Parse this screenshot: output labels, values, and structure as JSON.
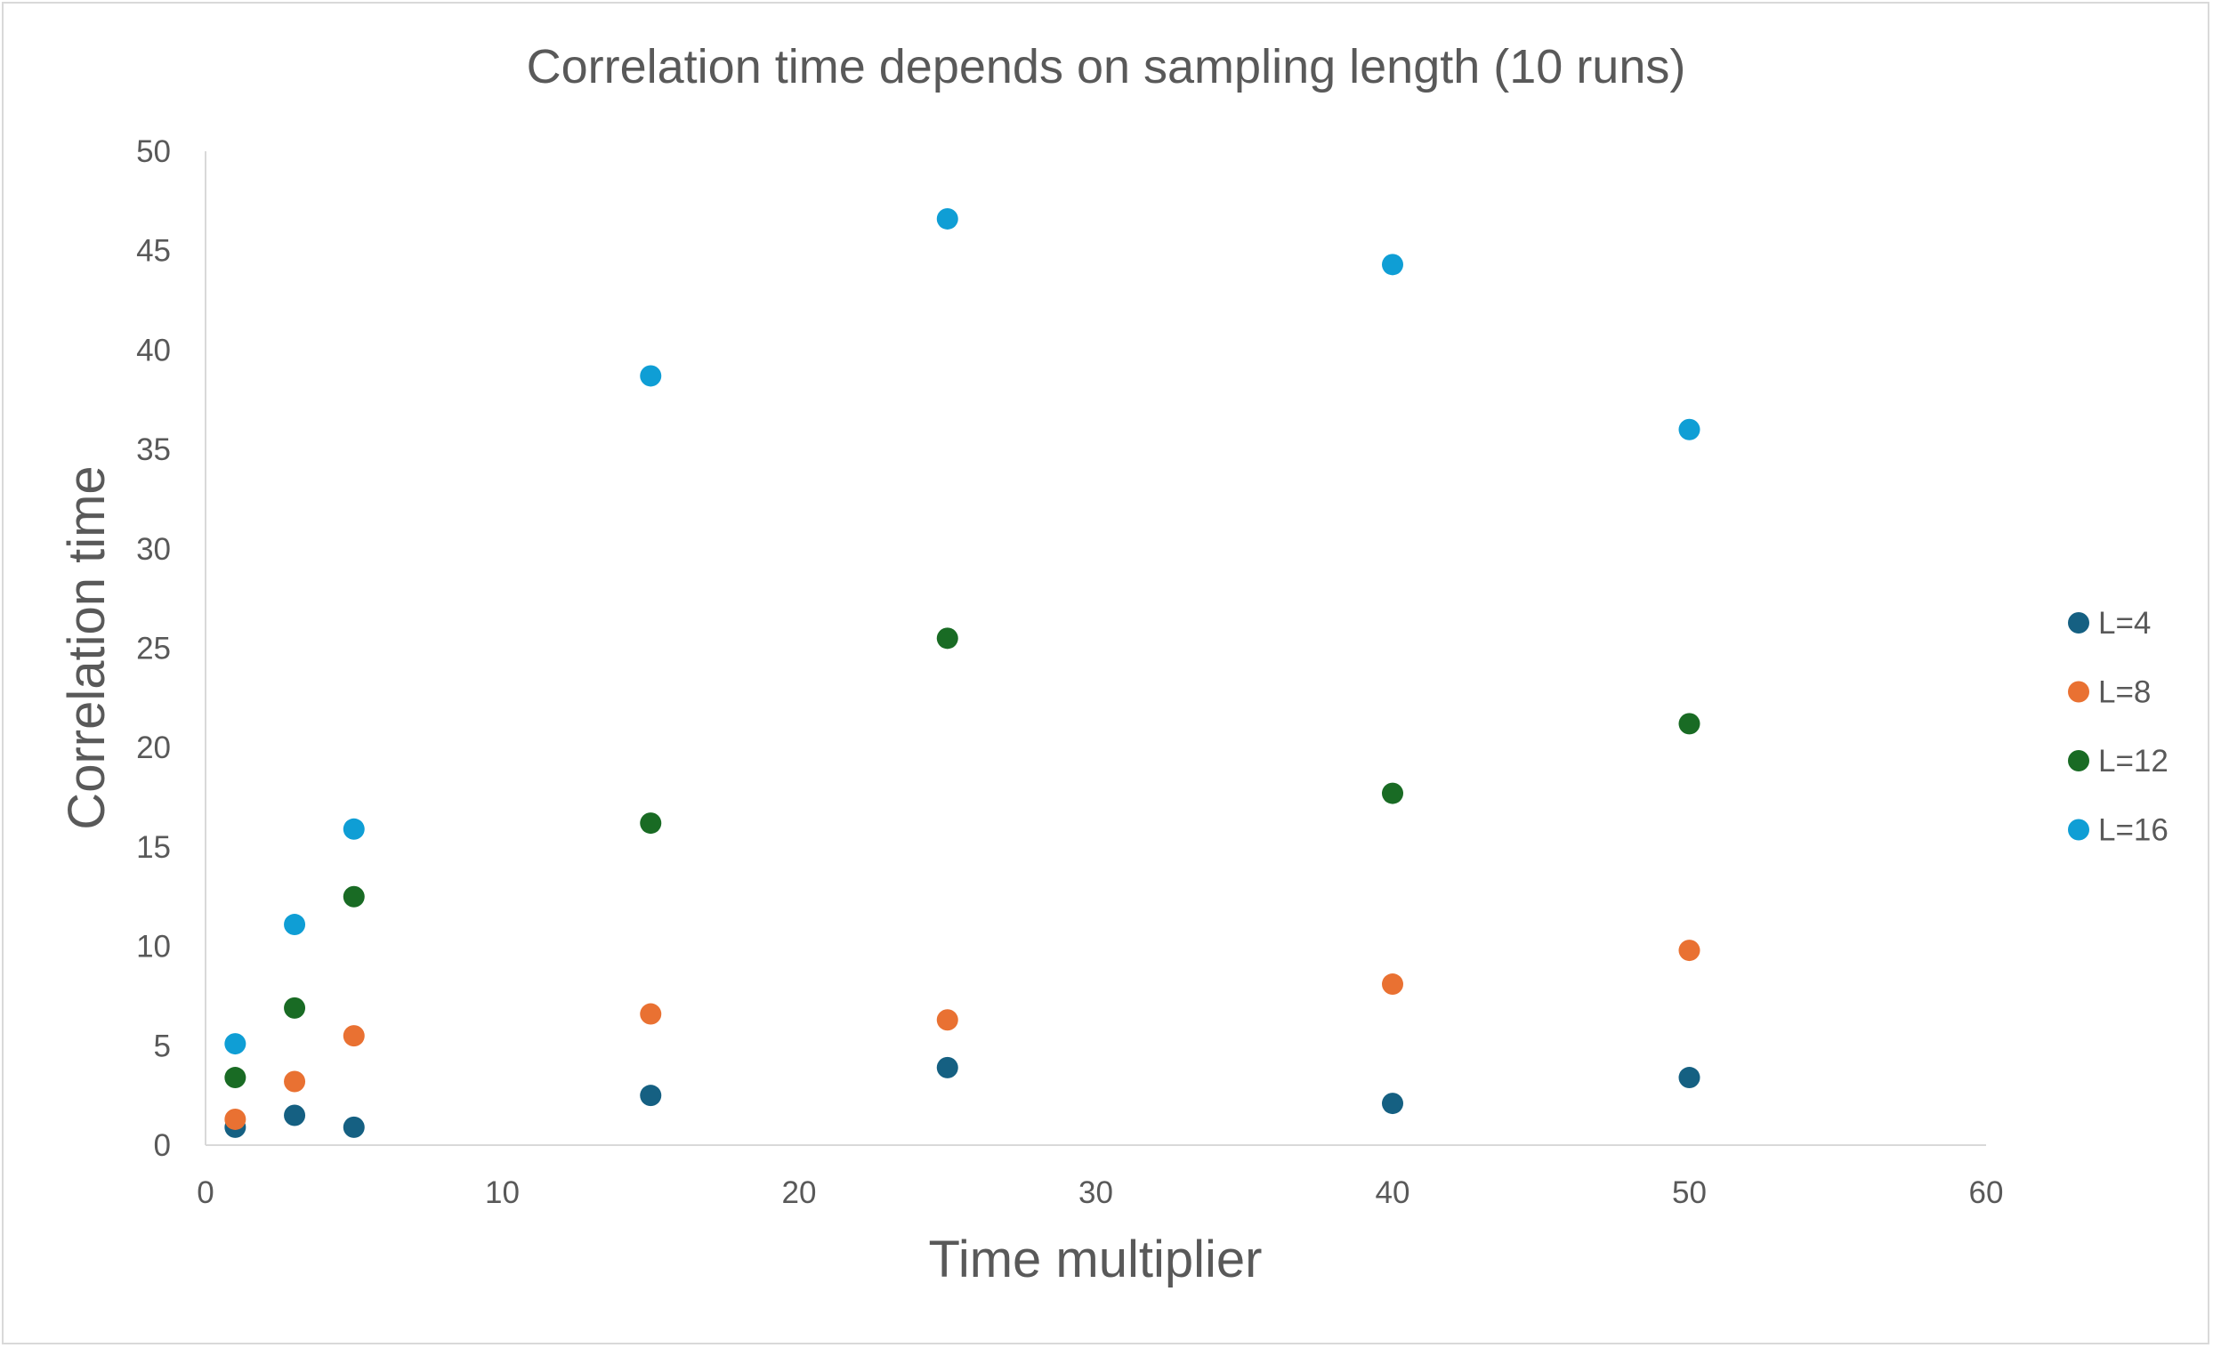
{
  "chart_data": {
    "type": "scatter",
    "title": "Correlation time depends on sampling length (10 runs)",
    "xlabel": "Time multiplier",
    "ylabel": "Correlation time",
    "xlim": [
      0,
      60
    ],
    "ylim": [
      0,
      50
    ],
    "xticks": [
      "0",
      "10",
      "20",
      "30",
      "40",
      "50",
      "60"
    ],
    "yticks": [
      "0",
      "5",
      "10",
      "15",
      "20",
      "25",
      "30",
      "35",
      "40",
      "45",
      "50"
    ],
    "grid": false,
    "legend_position": "right",
    "series": [
      {
        "name": "L=4",
        "color": "#156082",
        "x": [
          1,
          3,
          5,
          15,
          25,
          40,
          50
        ],
        "y": [
          0.9,
          1.5,
          0.9,
          2.5,
          3.9,
          2.1,
          3.4
        ]
      },
      {
        "name": "L=8",
        "color": "#E97132",
        "x": [
          1,
          3,
          5,
          15,
          25,
          40,
          50
        ],
        "y": [
          1.3,
          3.2,
          5.5,
          6.6,
          6.3,
          8.1,
          9.8
        ]
      },
      {
        "name": "L=12",
        "color": "#196B24",
        "x": [
          1,
          3,
          5,
          15,
          25,
          40,
          50
        ],
        "y": [
          3.4,
          6.9,
          12.5,
          16.2,
          25.5,
          17.7,
          21.2
        ]
      },
      {
        "name": "L=16",
        "color": "#0F9ED5",
        "x": [
          1,
          3,
          5,
          15,
          25,
          40,
          50
        ],
        "y": [
          5.1,
          11.1,
          15.9,
          38.7,
          46.6,
          44.3,
          36.0
        ]
      }
    ]
  }
}
